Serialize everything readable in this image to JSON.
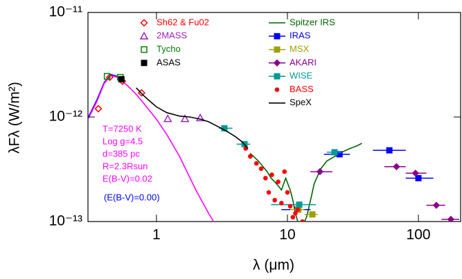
{
  "chart_data": {
    "type": "scatter",
    "xlabel": "λ (μm)",
    "ylabel": "λFλ (W/m²)",
    "xscale": "log",
    "yscale": "log",
    "xlim": [
      0.3,
      210
    ],
    "ylim": [
      1e-13,
      1e-11
    ],
    "xticks": [
      1,
      10,
      100
    ],
    "yticks": [
      {
        "value": 1e-13,
        "label": "10⁻¹³"
      },
      {
        "value": 1e-12,
        "label": "10⁻¹²"
      },
      {
        "value": 1e-11,
        "label": "10⁻¹¹"
      }
    ],
    "series": [
      {
        "name": "Sh62 & Fu02",
        "color": "#ff0000",
        "marker": "diamond-open",
        "x": [
          0.36,
          0.44,
          0.55,
          0.77
        ],
        "values": [
          1.2e-12,
          2.4e-12,
          2.2e-12,
          1.7e-12
        ]
      },
      {
        "name": "2MASS",
        "color": "#a020c0",
        "marker": "triangle-open",
        "x": [
          1.22,
          1.65,
          2.16
        ],
        "values": [
          9.6e-13,
          9.6e-13,
          9.8e-13
        ]
      },
      {
        "name": "Tycho",
        "color": "#008000",
        "marker": "square-open",
        "x": [
          0.42,
          0.53
        ],
        "values": [
          2.45e-12,
          2.4e-12
        ]
      },
      {
        "name": "ASAS",
        "color": "#000000",
        "marker": "square",
        "x": [
          0.54
        ],
        "values": [
          2.3e-12
        ]
      },
      {
        "name": "Spitzer IRS",
        "color": "#006400",
        "marker": "line",
        "x": [
          5.2,
          6,
          7,
          7.5,
          8,
          8.5,
          9,
          9.7,
          10.5,
          11,
          11.5,
          12,
          12.5,
          13,
          14,
          15,
          16,
          18,
          20,
          23,
          26,
          30,
          34,
          37
        ],
        "values": [
          4.5e-13,
          3.8e-13,
          3e-13,
          2.6e-13,
          2.4e-13,
          2.2e-13,
          2e-13,
          2.6e-13,
          2e-13,
          1.6e-13,
          1.2e-13,
          1e-13,
          9.5e-14,
          9e-14,
          1.1e-13,
          1.6e-13,
          2.3e-13,
          3.2e-13,
          3.8e-13,
          4.2e-13,
          4.6e-13,
          5e-13,
          5.3e-13,
          5.6e-13
        ]
      },
      {
        "name": "IRAS",
        "color": "#0000ff",
        "marker": "square",
        "x": [
          12,
          25,
          60,
          100
        ],
        "values": [
          1.3e-13,
          4.4e-13,
          4.8e-13,
          2.6e-13
        ],
        "x_range": [
          [
            9,
            15
          ],
          [
            19,
            30
          ],
          [
            45,
            80
          ],
          [
            80,
            130
          ]
        ]
      },
      {
        "name": "MSX",
        "color": "#a0a000",
        "marker": "square",
        "x": [
          12.1,
          15.5
        ],
        "values": [
          1.3e-13,
          1.17e-13
        ],
        "x_range": [
          [
            10.5,
            13.5
          ],
          [
            13.5,
            17
          ]
        ]
      },
      {
        "name": "AKARI",
        "color": "#8b008b",
        "marker": "diamond",
        "x": [
          17.7,
          68,
          95,
          137,
          177
        ],
        "values": [
          3e-13,
          3.35e-13,
          2.9e-13,
          1.43e-13,
          1.05e-13
        ],
        "x_range": [
          [
            15,
            22
          ],
          [
            55,
            80
          ],
          [
            80,
            115
          ],
          [
            115,
            160
          ],
          [
            150,
            205
          ]
        ]
      },
      {
        "name": "WISE",
        "color": "#009999",
        "marker": "square",
        "x": [
          3.3,
          4.7,
          12.3,
          22.9
        ],
        "values": [
          7.8e-13,
          5.5e-13,
          1.45e-13,
          4.6e-13
        ],
        "x_range": [
          [
            3.0,
            3.8
          ],
          [
            4.1,
            5.2
          ],
          [
            7.5,
            16.5
          ],
          [
            20,
            26
          ]
        ]
      },
      {
        "name": "BASS",
        "color": "#ff0000",
        "marker": "circle",
        "x": [
          4.8,
          5.2,
          5.8,
          6.3,
          6.8,
          7.2,
          7.6,
          8.0,
          8.5,
          9.0,
          9.5,
          10,
          10.5,
          11,
          11.5,
          12,
          13
        ],
        "values": [
          5e-13,
          4.2e-13,
          3.6e-13,
          3.2e-13,
          2.6e-13,
          1.9e-13,
          2.8e-13,
          1.6e-13,
          2.4e-13,
          1.5e-13,
          3e-13,
          1.9e-13,
          1.4e-13,
          1.1e-13,
          1.2e-13,
          1.3e-13,
          1e-13
        ]
      },
      {
        "name": "SpeX",
        "color": "#000000",
        "marker": "line",
        "x": [
          0.7,
          0.8,
          0.9,
          1.0,
          1.2,
          1.5,
          1.8,
          2.2,
          2.5,
          3.0,
          3.5,
          4.0,
          4.5,
          5.0
        ],
        "values": [
          1.9e-12,
          1.6e-12,
          1.4e-12,
          1.25e-12,
          1.1e-12,
          1.02e-12,
          1e-12,
          9.5e-13,
          9e-13,
          8e-13,
          7.2e-13,
          6.5e-13,
          5.8e-13,
          5e-13
        ]
      }
    ],
    "model_curves": [
      {
        "color": "#0000ff",
        "x": [
          0.3,
          0.35,
          0.4,
          0.45,
          0.5
        ],
        "values": [
          9.8e-13,
          1.45e-12,
          2.15e-12,
          2.55e-12,
          2.45e-12
        ]
      },
      {
        "color": "#ff00ff",
        "x": [
          0.3,
          0.35,
          0.4,
          0.45,
          0.5,
          0.6,
          0.7,
          0.8,
          1.0,
          1.2,
          1.5,
          2.0,
          2.5,
          2.8
        ],
        "values": [
          9.5e-13,
          1.4e-12,
          2.1e-12,
          2.5e-12,
          2.4e-12,
          2e-12,
          1.65e-12,
          1.35e-12,
          9.5e-13,
          6.8e-13,
          4.2e-13,
          2e-13,
          1.2e-13,
          9.5e-14
        ]
      }
    ],
    "annotations": [
      {
        "text": "T=7250 K",
        "color": "#ff00ff"
      },
      {
        "text": "Log g=4.5",
        "color": "#ff00ff"
      },
      {
        "text": "d=385 pc",
        "color": "#ff00ff"
      },
      {
        "text": "R=2.3Rsun",
        "color": "#ff00ff"
      },
      {
        "text": "E(B-V)=0.02",
        "color": "#ff00ff"
      },
      {
        "text": "(E(B-V)=0.00)",
        "color": "#0000ff"
      }
    ]
  }
}
